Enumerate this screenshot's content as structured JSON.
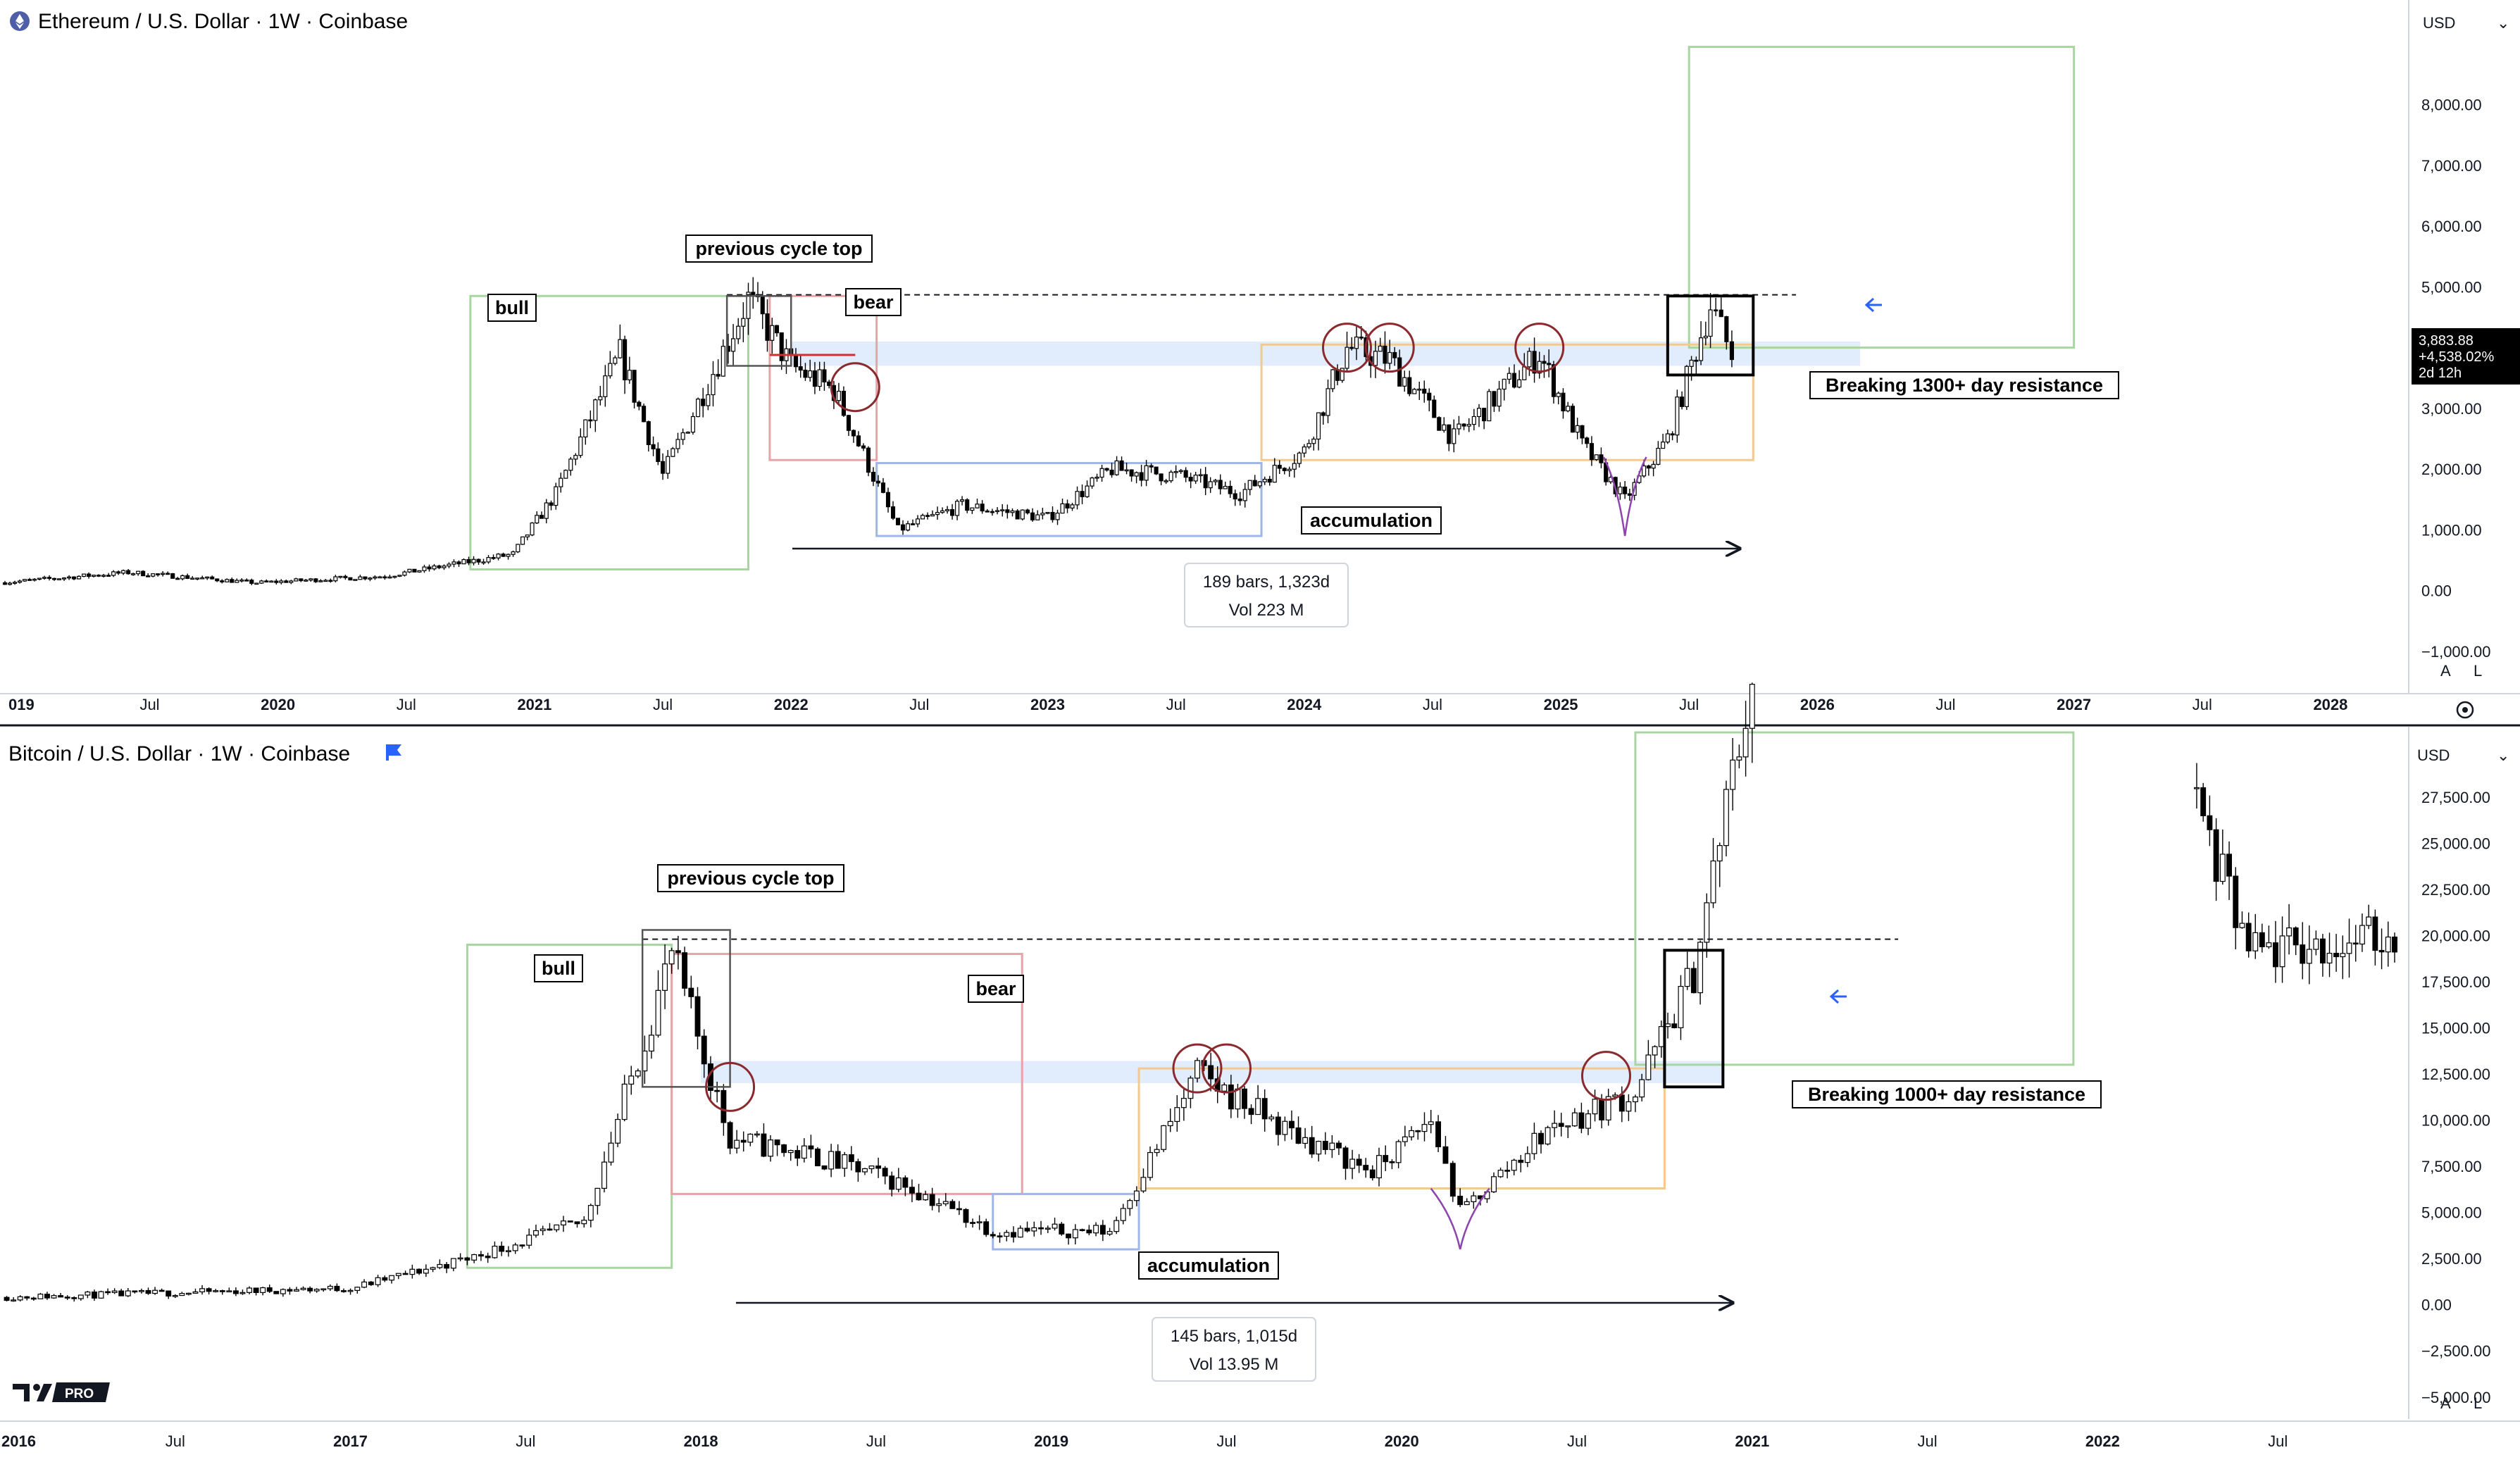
{
  "colors": {
    "bull_box": "#a8d5a2",
    "bear_box": "#e6a3a8",
    "accum_box": "#9fb6e8",
    "range_box": "#f2c98f",
    "resistance_band": "#dce9fb",
    "circle": "#8b2a2e",
    "capitulation": "#8e44ad",
    "arrow_blue": "#2962ff",
    "price_tag_bg": "#000000"
  },
  "top_panel": {
    "title": "Ethereum / U.S. Dollar · 1W · Coinbase",
    "currency": "USD",
    "price_label": {
      "price": "3,883.88",
      "change": "+4,538.02%",
      "countdown": "2d 12h"
    },
    "scale_buttons": [
      "A",
      "L"
    ],
    "annotations": {
      "bull": "bull",
      "bear": "bear",
      "previous_top": "previous cycle top",
      "accumulation": "accumulation",
      "breaking": "Breaking 1300+ day resistance"
    },
    "measure": {
      "bars": "189 bars, 1,323d",
      "vol": "Vol 223 M"
    }
  },
  "bottom_panel": {
    "title": "Bitcoin / U.S. Dollar · 1W · Coinbase",
    "currency": "USD",
    "scale_buttons": [
      "A",
      "L"
    ],
    "logo_text": "PRO",
    "annotations": {
      "bull": "bull",
      "bear": "bear",
      "previous_top": "previous cycle top",
      "accumulation": "accumulation",
      "breaking": "Breaking 1000+ day resistance"
    },
    "measure": {
      "bars": "145 bars, 1,015d",
      "vol": "Vol 13.95 M"
    }
  },
  "chart_data": [
    {
      "type": "candlestick",
      "series_name": "Ethereum / U.S. Dollar · 1W · Coinbase",
      "x_range": [
        "2018-12",
        "2028-04"
      ],
      "y_range": [
        -1000,
        9200
      ],
      "y_ticks": [
        "8,000.00",
        "7,000.00",
        "6,000.00",
        "5,000.00",
        "4,000.00",
        "3,000.00",
        "2,000.00",
        "1,000.00",
        "0.00",
        "−1,000.00"
      ],
      "x_ticks": [
        "019",
        "Jul",
        "2020",
        "Jul",
        "2021",
        "Jul",
        "2022",
        "Jul",
        "2023",
        "Jul",
        "2024",
        "Jul",
        "2025",
        "Jul",
        "2026",
        "Jul",
        "2027",
        "Jul",
        "2028"
      ],
      "price_path": [
        [
          "2018-12",
          130
        ],
        [
          "2019-06",
          300
        ],
        [
          "2019-12",
          130
        ],
        [
          "2020-06",
          240
        ],
        [
          "2020-12",
          600
        ],
        [
          "2021-02",
          1600
        ],
        [
          "2021-05",
          3900
        ],
        [
          "2021-07",
          1900
        ],
        [
          "2021-11",
          4800
        ],
        [
          "2022-01",
          3700
        ],
        [
          "2022-03",
          3300
        ],
        [
          "2022-06",
          1000
        ],
        [
          "2022-09",
          1400
        ],
        [
          "2023-01",
          1200
        ],
        [
          "2023-04",
          2000
        ],
        [
          "2023-07",
          1900
        ],
        [
          "2023-10",
          1600
        ],
        [
          "2024-01",
          2300
        ],
        [
          "2024-03",
          4000
        ],
        [
          "2024-05",
          3800
        ],
        [
          "2024-08",
          2500
        ],
        [
          "2024-12",
          3900
        ],
        [
          "2025-02",
          2400
        ],
        [
          "2025-04",
          1500
        ],
        [
          "2025-06",
          2500
        ],
        [
          "2025-08",
          4700
        ],
        [
          "2025-09",
          3880
        ]
      ],
      "last_price": 3883.88,
      "previous_cycle_top": 4870,
      "resistance_band": [
        3700,
        4100
      ],
      "boxes": {
        "bull": [
          "2020-10",
          "2021-11",
          350,
          4850
        ],
        "bear": [
          "2021-12",
          "2022-05",
          2150,
          4850
        ],
        "accumulation": [
          "2022-05",
          "2023-11",
          900,
          2100
        ],
        "range": [
          "2023-11",
          "2025-10",
          2150,
          4050
        ],
        "breakout": [
          "2025-06",
          "2025-10",
          3550,
          4850
        ],
        "target": [
          "2025-07",
          "2027-01",
          4000,
          8950
        ]
      }
    },
    {
      "type": "candlestick",
      "series_name": "Bitcoin / U.S. Dollar · 1W · Coinbase",
      "x_range": [
        "2016-01",
        "2022-11"
      ],
      "y_range": [
        -6000,
        31000
      ],
      "y_ticks": [
        "27,500.00",
        "25,000.00",
        "22,500.00",
        "20,000.00",
        "17,500.00",
        "15,000.00",
        "12,500.00",
        "10,000.00",
        "7,500.00",
        "5,000.00",
        "2,500.00",
        "0.00",
        "−2,500.00",
        "−5,000.00"
      ],
      "x_ticks": [
        "2016",
        "Jul",
        "2017",
        "Jul",
        "2018",
        "Jul",
        "2019",
        "Jul",
        "2020",
        "Jul",
        "2021",
        "Jul",
        "2022",
        "Jul"
      ],
      "price_path": [
        [
          "2016-01",
          400
        ],
        [
          "2016-07",
          650
        ],
        [
          "2017-01",
          900
        ],
        [
          "2017-05",
          2500
        ],
        [
          "2017-09",
          4500
        ],
        [
          "2017-12",
          19000
        ],
        [
          "2018-02",
          9000
        ],
        [
          "2018-05",
          8000
        ],
        [
          "2018-08",
          6500
        ],
        [
          "2018-11",
          4000
        ],
        [
          "2019-03",
          4000
        ],
        [
          "2019-06",
          12500
        ],
        [
          "2019-09",
          9500
        ],
        [
          "2019-12",
          7200
        ],
        [
          "2020-02",
          10000
        ],
        [
          "2020-03",
          5000
        ],
        [
          "2020-06",
          9500
        ],
        [
          "2020-09",
          11500
        ],
        [
          "2020-11",
          18000
        ],
        [
          "2021-01",
          34000
        ]
      ],
      "late_path": [
        [
          "2022-04",
          28000
        ],
        [
          "2022-06",
          19000
        ],
        [
          "2022-09",
          19500
        ],
        [
          "2022-11",
          20000
        ]
      ],
      "previous_cycle_top": 19800,
      "resistance_band": [
        12000,
        13200
      ],
      "boxes": {
        "bull": [
          "2017-05",
          "2017-12",
          2000,
          19500
        ],
        "bear": [
          "2017-12",
          "2018-12",
          6000,
          19000
        ],
        "accumulation": [
          "2018-11",
          "2019-04",
          3000,
          6000
        ],
        "range": [
          "2019-04",
          "2020-10",
          6300,
          12800
        ],
        "breakout": [
          "2020-10",
          "2020-12",
          11800,
          19200
        ],
        "target": [
          "2020-09",
          "2021-12",
          13000,
          31000
        ]
      }
    }
  ]
}
